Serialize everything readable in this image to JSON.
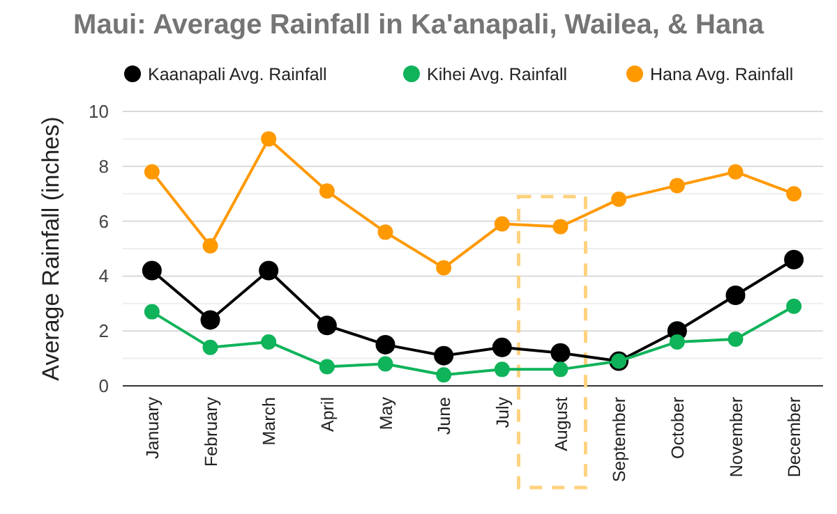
{
  "chart_data": {
    "type": "line",
    "title": "Maui: Average Rainfall in Ka'anapali, Wailea, & Hana",
    "ylabel": "Average Rainfall (inches)",
    "categories": [
      "January",
      "February",
      "March",
      "April",
      "May",
      "June",
      "July",
      "August",
      "September",
      "October",
      "November",
      "December"
    ],
    "series": [
      {
        "name": "Kaanapali Avg. Rainfall",
        "color": "#000000",
        "values": [
          4.2,
          2.4,
          4.2,
          2.2,
          1.5,
          1.1,
          1.4,
          1.2,
          0.9,
          2.0,
          3.3,
          4.6
        ]
      },
      {
        "name": "Kihei Avg. Rainfall",
        "color": "#0fb35a",
        "values": [
          2.7,
          1.4,
          1.6,
          0.7,
          0.8,
          0.4,
          0.6,
          0.6,
          0.9,
          1.6,
          1.7,
          2.9
        ]
      },
      {
        "name": "Hana Avg. Rainfall",
        "color": "#ff9900",
        "values": [
          7.8,
          5.1,
          9.0,
          7.1,
          5.6,
          4.3,
          5.9,
          5.8,
          6.8,
          7.3,
          7.8,
          7.0
        ]
      }
    ],
    "ylim": [
      0,
      10
    ],
    "yticks": [
      0,
      {
        "value": 1,
        "label": null
      },
      2,
      {
        "value": 3,
        "label": null
      },
      4,
      {
        "value": 5,
        "label": null
      },
      6,
      {
        "value": 7,
        "label": null
      },
      8,
      {
        "value": 9,
        "label": null
      },
      10
    ],
    "grid": "y",
    "legend": "top",
    "marker": "circle",
    "line_style": "solid"
  }
}
